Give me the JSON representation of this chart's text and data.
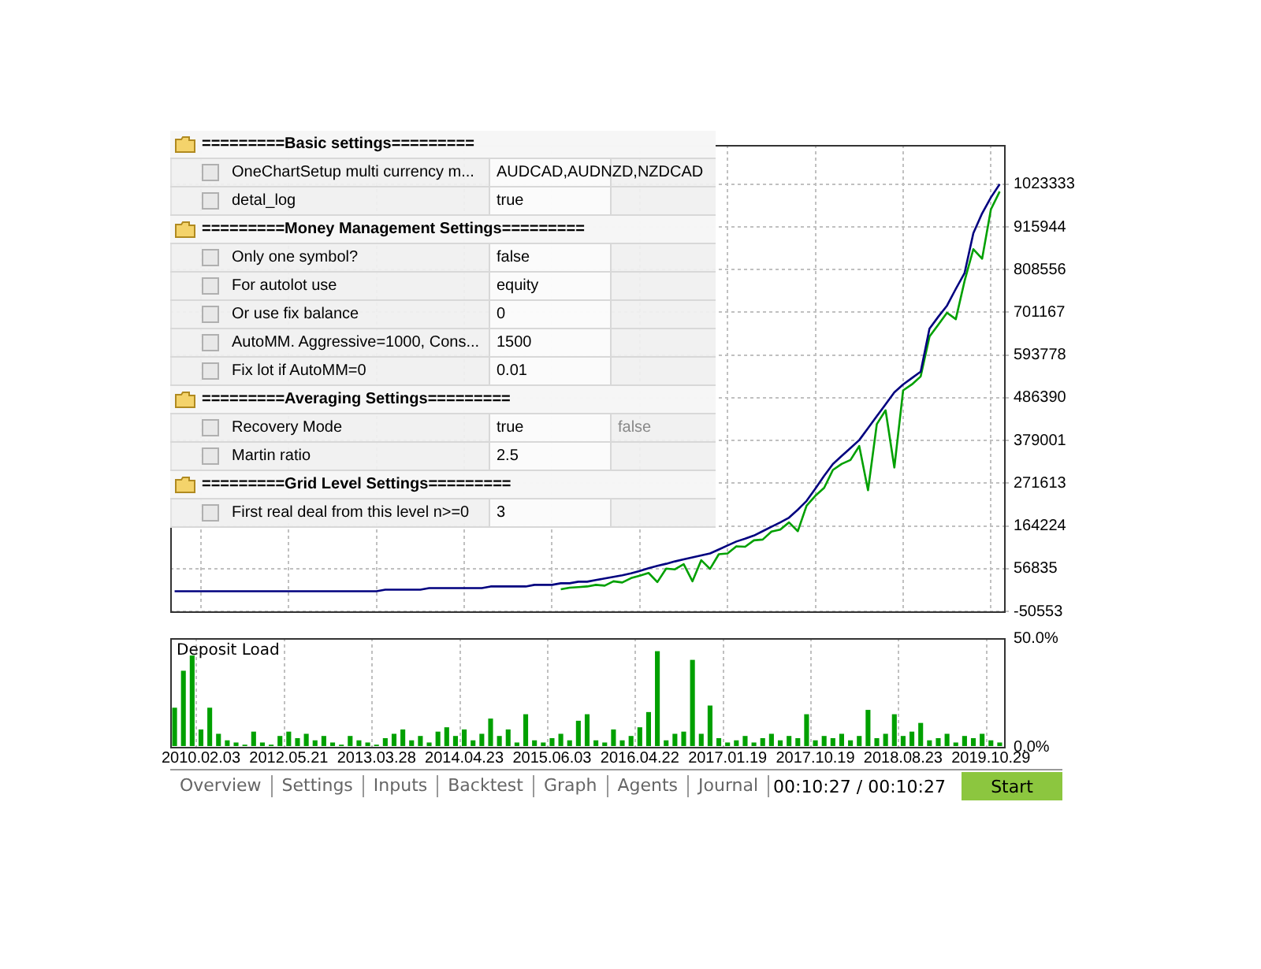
{
  "chart_data": [
    {
      "type": "line",
      "categories": [
        null,
        null,
        null,
        "2010.02.03",
        null,
        null,
        null,
        null,
        null,
        null,
        null,
        null,
        null,
        "2012.05.21",
        null,
        null,
        null,
        null,
        null,
        null,
        null,
        null,
        null,
        "2013.03.28",
        null,
        null,
        null,
        null,
        null,
        null,
        null,
        null,
        null,
        "2014.04.23",
        null,
        null,
        null,
        null,
        null,
        null,
        null,
        null,
        null,
        "2015.06.03",
        null,
        null,
        null,
        null,
        null,
        null,
        null,
        null,
        null,
        "2016.04.22",
        null,
        null,
        null,
        null,
        null,
        null,
        null,
        null,
        null,
        "2017.01.19",
        null,
        null,
        null,
        null,
        null,
        null,
        null,
        null,
        null,
        "2017.10.19",
        null,
        null,
        null,
        null,
        null,
        null,
        null,
        null,
        null,
        "2018.08.23",
        null,
        null,
        null,
        null,
        null,
        null,
        null,
        null,
        null,
        "2019.10.29",
        null
      ],
      "series": [
        {
          "color": "#00007f",
          "values": [
            0,
            0,
            0,
            0,
            0,
            0,
            0,
            0,
            0,
            0,
            0,
            0,
            0,
            0,
            0,
            0,
            0,
            0,
            0,
            0,
            0,
            0,
            0,
            0,
            4000,
            4000,
            4000,
            4000,
            4000,
            8000,
            8000,
            8000,
            8000,
            8000,
            8000,
            8000,
            12000,
            12000,
            12000,
            12000,
            12000,
            16000,
            16000,
            16000,
            20000,
            20000,
            24000,
            24000,
            28000,
            32000,
            36000,
            40000,
            45000,
            51000,
            58000,
            64000,
            69000,
            75000,
            80000,
            85000,
            90000,
            95000,
            105000,
            115000,
            125000,
            132000,
            140000,
            151000,
            162000,
            173000,
            185000,
            205000,
            227000,
            258000,
            290000,
            320000,
            340000,
            360000,
            380000,
            410000,
            440000,
            470000,
            500000,
            520000,
            536000,
            552000,
            660000,
            690000,
            718000,
            760000,
            800000,
            900000,
            950000,
            990000,
            1023333
          ]
        },
        {
          "color": "#00a000",
          "values": [
            null,
            null,
            null,
            null,
            null,
            null,
            null,
            null,
            null,
            null,
            null,
            null,
            null,
            null,
            null,
            null,
            null,
            null,
            null,
            null,
            null,
            null,
            null,
            null,
            null,
            null,
            null,
            null,
            null,
            null,
            null,
            null,
            null,
            null,
            null,
            null,
            null,
            null,
            null,
            null,
            null,
            null,
            null,
            null,
            5000,
            9000,
            10500,
            12000,
            16000,
            14000,
            25000,
            22000,
            33000,
            39000,
            46000,
            23000,
            57000,
            55000,
            68000,
            25000,
            78000,
            56000,
            93000,
            95000,
            113000,
            112000,
            128000,
            130000,
            150000,
            155000,
            173000,
            151000,
            215000,
            240000,
            260000,
            305000,
            320000,
            330000,
            365000,
            254000,
            420000,
            455000,
            311000,
            505000,
            520000,
            540000,
            640000,
            670000,
            700000,
            684000,
            780000,
            860000,
            836000,
            960000,
            1005000
          ]
        }
      ],
      "ylim": [
        -50553,
        1122000
      ],
      "yticks": [
        -50553,
        56835,
        164224,
        271613,
        379001,
        486390,
        593778,
        701167,
        808556,
        915944,
        1023333
      ],
      "grid": true,
      "tick_labels": "y"
    },
    {
      "type": "bar",
      "title": "Deposit Load",
      "categories": [
        null,
        null,
        null,
        "2010.02.03",
        null,
        null,
        null,
        null,
        null,
        null,
        null,
        null,
        null,
        "2012.05.21",
        null,
        null,
        null,
        null,
        null,
        null,
        null,
        null,
        null,
        "2013.03.28",
        null,
        null,
        null,
        null,
        null,
        null,
        null,
        null,
        null,
        "2014.04.23",
        null,
        null,
        null,
        null,
        null,
        null,
        null,
        null,
        null,
        "2015.06.03",
        null,
        null,
        null,
        null,
        null,
        null,
        null,
        null,
        null,
        "2016.04.22",
        null,
        null,
        null,
        null,
        null,
        null,
        null,
        null,
        null,
        "2017.01.19",
        null,
        null,
        null,
        null,
        null,
        null,
        null,
        null,
        null,
        "2017.10.19",
        null,
        null,
        null,
        null,
        null,
        null,
        null,
        null,
        null,
        "2018.08.23",
        null,
        null,
        null,
        null,
        null,
        null,
        null,
        null,
        null,
        "2019.10.29",
        null
      ],
      "values": [
        18,
        35,
        42,
        8,
        18,
        6,
        3,
        2,
        1,
        7,
        2,
        1,
        5,
        7,
        4,
        6,
        3,
        5,
        2,
        1,
        5,
        3,
        2,
        1,
        4,
        6,
        8,
        3,
        5,
        2,
        7,
        9,
        5,
        8,
        3,
        6,
        13,
        5,
        8,
        2,
        15,
        3,
        2,
        4,
        6,
        3,
        12,
        15,
        3,
        2,
        8,
        3,
        5,
        9,
        16,
        44,
        3,
        6,
        7,
        40,
        6,
        19,
        4,
        2,
        3,
        5,
        2,
        4,
        6,
        3,
        5,
        4,
        15,
        3,
        5,
        4,
        6,
        3,
        5,
        17,
        4,
        6,
        15,
        5,
        7,
        11,
        3,
        4,
        6,
        2,
        5,
        4,
        6,
        3,
        2
      ],
      "color": "#00a000",
      "ylim": [
        0,
        50
      ],
      "yticks": [
        {
          "value": 0,
          "label": "0.0%"
        },
        {
          "value": 50,
          "label": "50.0%"
        }
      ],
      "grid": "x"
    },
    {
      "type": "other",
      "categories": [
        "=========Basic settings=========",
        "OneChartSetup multi currency m...",
        "detal_log",
        "=========Money Management Settings=========",
        "Only one symbol?",
        "For autolot use",
        "Or use fix balance",
        "AutoMM. Aggressive=1000, Cons...",
        "Fix lot if AutoMM=0",
        "=========Averaging Settings=========",
        "Recovery Mode",
        "Martin ratio",
        "=========Grid Level Settings=========",
        "First real deal from this level n>=0"
      ],
      "value_labels": [
        null,
        "AUDCAD,AUDNZD,NZDCAD",
        "true",
        null,
        "false",
        "equity",
        "0",
        "1500",
        "0.01",
        null,
        "true",
        "2.5",
        null,
        "3"
      ],
      "annotations": [
        null,
        null,
        null,
        null,
        null,
        null,
        null,
        null,
        null,
        null,
        "false",
        null,
        null,
        null
      ]
    },
    {
      "type": "other",
      "categories": [
        "Overview",
        "Settings",
        "Inputs",
        "Backtest",
        "Graph",
        "Agents",
        "Journal"
      ],
      "annotations": [
        "00:10:27 / 00:10:27",
        "Start"
      ]
    }
  ]
}
